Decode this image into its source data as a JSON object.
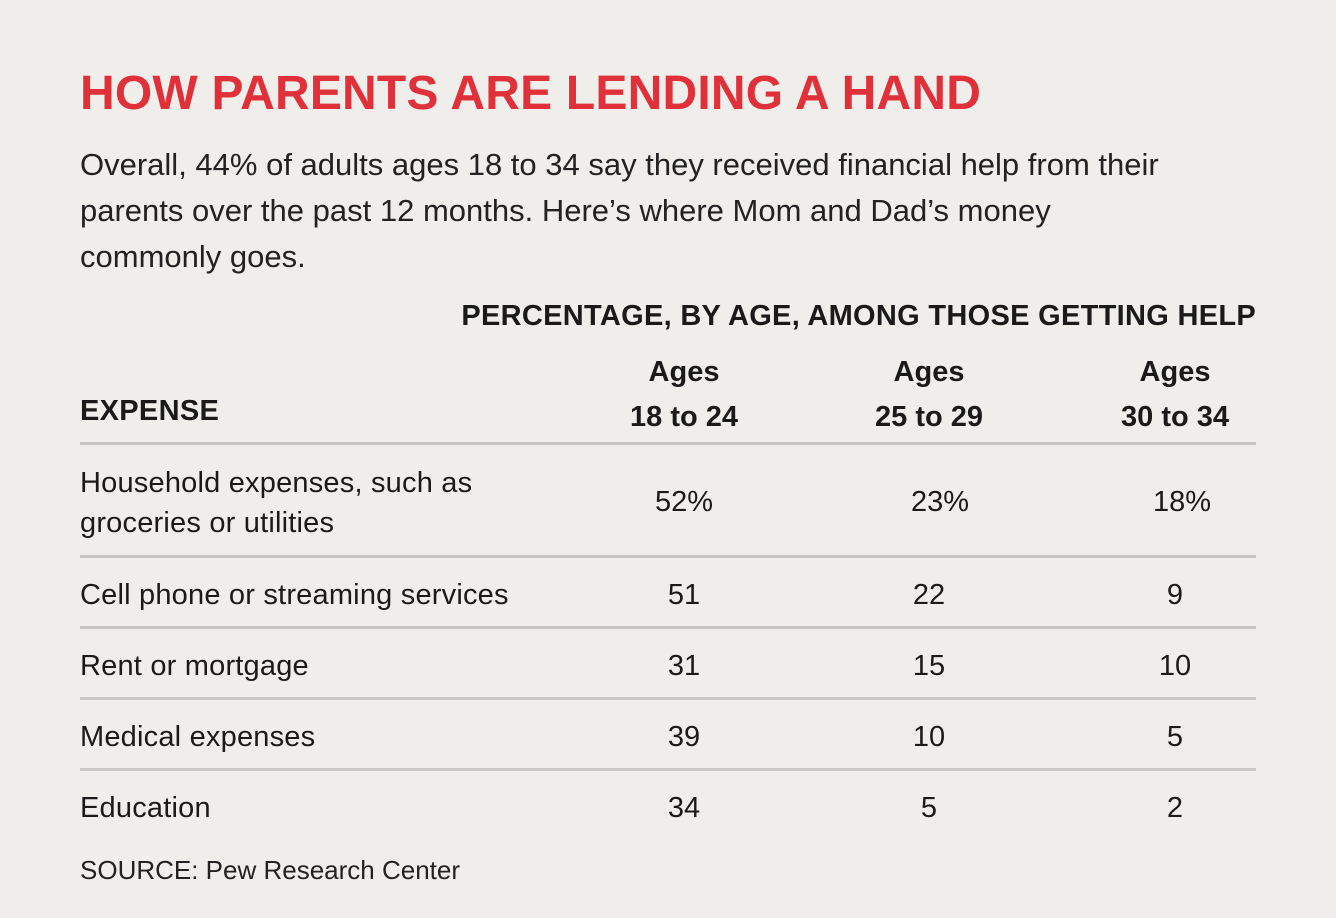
{
  "title": "HOW PARENTS ARE LENDING A HAND",
  "subtitle": "Overall, 44% of adults ages 18 to 34 say they received financial help from their parents over the past 12 months. Here’s where Mom and Dad’s money commonly goes.",
  "table_heading": "PERCENTAGE, BY AGE, AMONG THOSE GETTING HELP",
  "columns": {
    "expense": "EXPENSE",
    "ages": [
      {
        "line1": "Ages",
        "line2": "18 to 24"
      },
      {
        "line1": "Ages",
        "line2": "25 to 29"
      },
      {
        "line1": "Ages",
        "line2": "30 to 34"
      }
    ]
  },
  "rows": [
    {
      "label": "Household expenses, such as groceries or utilities",
      "values": [
        "52%",
        "23%",
        "18%"
      ]
    },
    {
      "label": "Cell phone or streaming services",
      "values": [
        "51",
        "22",
        "9"
      ]
    },
    {
      "label": "Rent or mortgage",
      "values": [
        "31",
        "15",
        "10"
      ]
    },
    {
      "label": "Medical expenses",
      "values": [
        "39",
        "10",
        "5"
      ]
    },
    {
      "label": "Education",
      "values": [
        "34",
        "5",
        "2"
      ]
    }
  ],
  "source": "SOURCE: Pew Research Center",
  "colors": {
    "title": "#e0313a",
    "background": "#efeeeb",
    "rule": "#c7c7c4"
  },
  "chart_data": {
    "type": "table",
    "title": "HOW PARENTS ARE LENDING A HAND",
    "subtitle": "Overall, 44% of adults ages 18 to 34 say they received financial help from their parents over the past 12 months. Here’s where Mom and Dad’s money commonly goes.",
    "columns": [
      "EXPENSE",
      "Ages 18 to 24",
      "Ages 25 to 29",
      "Ages 30 to 34"
    ],
    "categories": [
      "Household expenses, such as groceries or utilities",
      "Cell phone or streaming services",
      "Rent or mortgage",
      "Medical expenses",
      "Education"
    ],
    "series": [
      {
        "name": "Ages 18 to 24",
        "values": [
          52,
          51,
          31,
          39,
          34
        ]
      },
      {
        "name": "Ages 25 to 29",
        "values": [
          23,
          22,
          15,
          10,
          5
        ]
      },
      {
        "name": "Ages 30 to 34",
        "values": [
          18,
          9,
          10,
          5,
          2
        ]
      }
    ]
  }
}
